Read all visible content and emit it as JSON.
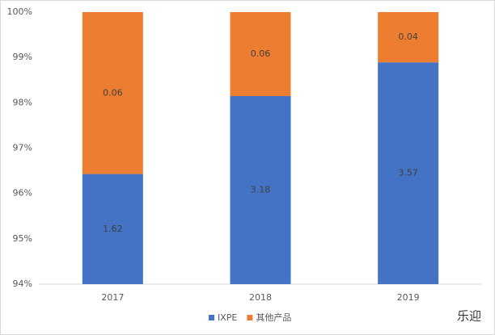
{
  "chart_data": {
    "type": "bar",
    "stacked": "percent",
    "categories": [
      "2017",
      "2018",
      "2019"
    ],
    "series": [
      {
        "name": "IXPE",
        "color": "#4472c4",
        "values": [
          1.62,
          3.18,
          3.57
        ]
      },
      {
        "name": "其他产品",
        "color": "#ed7d31",
        "values": [
          0.06,
          0.06,
          0.04
        ]
      }
    ],
    "ylim": [
      94,
      100
    ],
    "yticks": [
      {
        "value": 94,
        "label": "94%"
      },
      {
        "value": 95,
        "label": "95%"
      },
      {
        "value": 96,
        "label": "96%"
      },
      {
        "value": 97,
        "label": "97%"
      },
      {
        "value": 98,
        "label": "98%"
      },
      {
        "value": 99,
        "label": "99%"
      },
      {
        "value": 100,
        "label": "100%"
      }
    ],
    "legend": "bottom",
    "watermark": "乐迎"
  }
}
